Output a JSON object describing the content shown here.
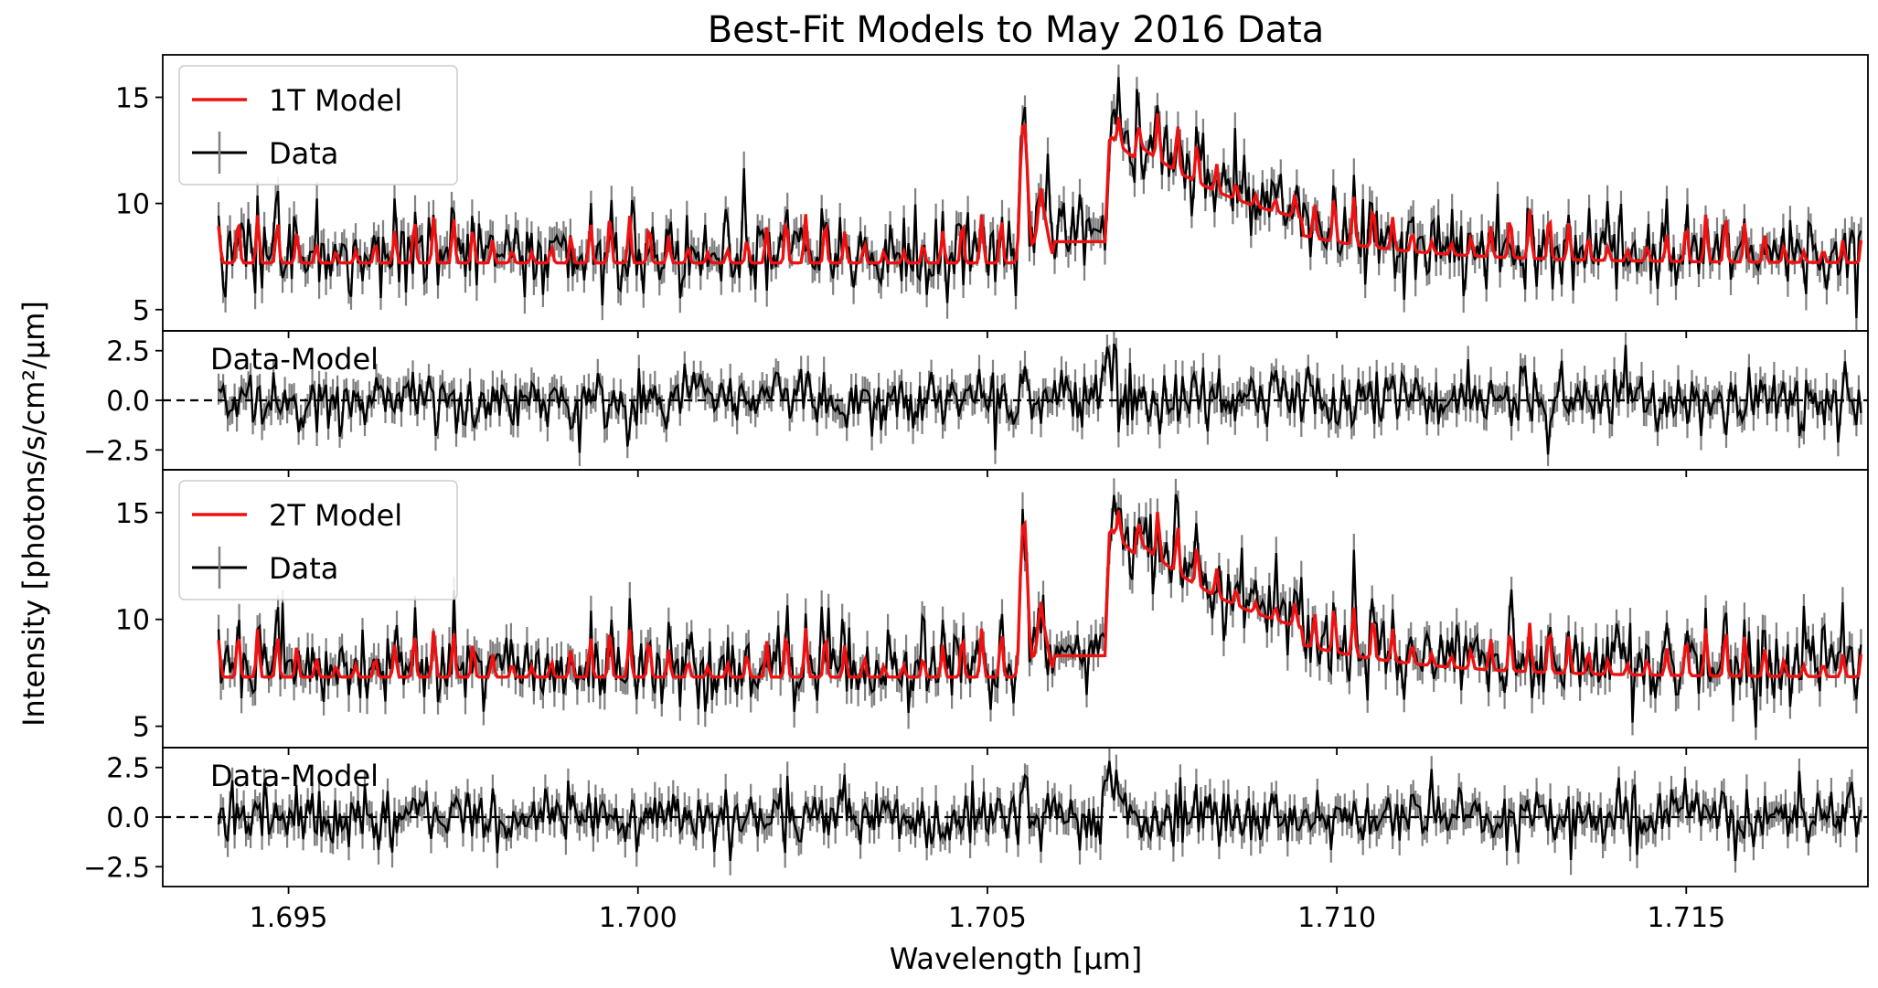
{
  "chart_data": {
    "type": "line",
    "title": "Best-Fit Models to May 2016 Data",
    "xlabel": "Wavelength [μm]",
    "ylabel": "Intensity [photons/s/cm²/μm]",
    "xlim": [
      1.6932,
      1.7176
    ],
    "x_ticks": [
      1.695,
      1.7,
      1.705,
      1.71,
      1.715
    ],
    "x_tick_labels": [
      "1.695",
      "1.700",
      "1.705",
      "1.710",
      "1.715"
    ],
    "data_x_range": [
      1.694,
      1.7175
    ],
    "colors": {
      "model": "#ee1111",
      "data": "#000000",
      "error": "#808080",
      "zero_line": "#000000"
    },
    "panels": [
      {
        "kind": "spectrum",
        "model_label": "1T Model",
        "data_label": "Data",
        "ylim": [
          4.0,
          17.0
        ],
        "y_ticks": [
          5,
          10,
          15
        ],
        "y_tick_labels": [
          "5",
          "10",
          "15"
        ],
        "continuum": 7.2,
        "line_features": [
          {
            "x": 1.70553,
            "height": 6.5
          },
          {
            "x": 1.70675,
            "height": 6.0
          }
        ],
        "series": [
          {
            "name": "1T Model",
            "role": "model"
          },
          {
            "name": "Data",
            "role": "data"
          }
        ]
      },
      {
        "kind": "residual",
        "annotation": "Data-Model",
        "ylim": [
          -3.5,
          3.5
        ],
        "y_ticks": [
          -2.5,
          0,
          2.5
        ],
        "y_tick_labels": [
          "−2.5",
          "0.0",
          "2.5"
        ],
        "zero_line": 0.0
      },
      {
        "kind": "spectrum",
        "model_label": "2T Model",
        "data_label": "Data",
        "ylim": [
          4.0,
          17.0
        ],
        "y_ticks": [
          5,
          10,
          15
        ],
        "y_tick_labels": [
          "5",
          "10",
          "15"
        ],
        "continuum": 7.3,
        "line_features": [
          {
            "x": 1.70553,
            "height": 7.2
          },
          {
            "x": 1.70675,
            "height": 7.0
          }
        ],
        "series": [
          {
            "name": "2T Model",
            "role": "model"
          },
          {
            "name": "Data",
            "role": "data"
          }
        ]
      },
      {
        "kind": "residual",
        "annotation": "Data-Model",
        "ylim": [
          -3.5,
          3.5
        ],
        "y_ticks": [
          -2.5,
          0,
          2.5
        ],
        "y_tick_labels": [
          "−2.5",
          "0.0",
          "2.5"
        ],
        "zero_line": 0.0
      }
    ]
  }
}
